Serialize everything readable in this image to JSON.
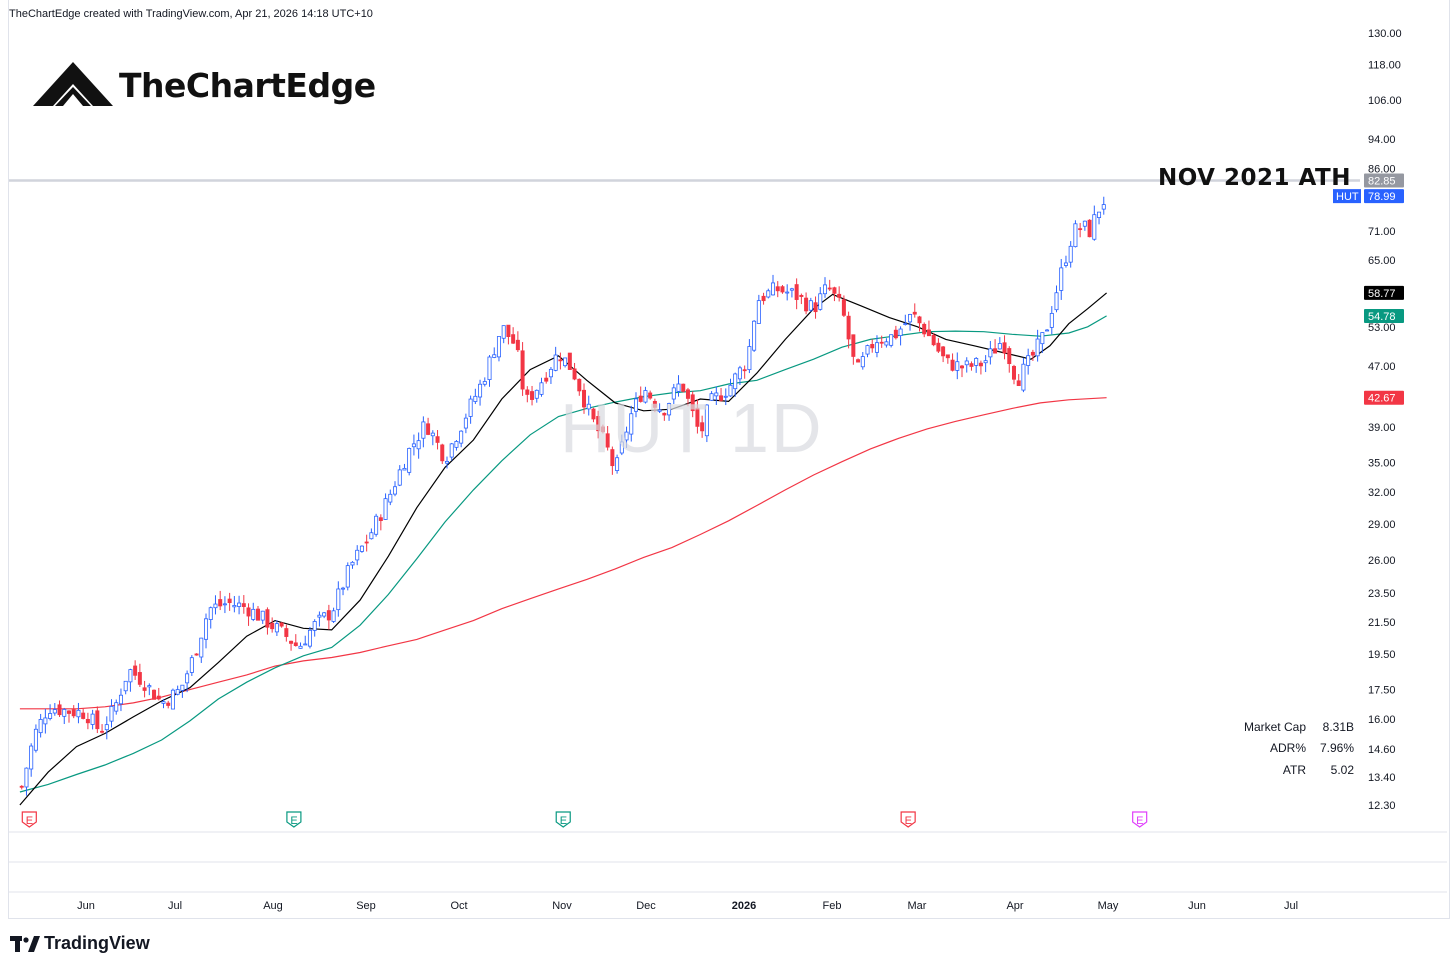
{
  "header": {
    "text": "TheChartEdge created with TradingView.com, Apr 21, 2026 14:18 UTC+10"
  },
  "logo": {
    "text": "TheChartEdge",
    "icon": "chevron-mountain-icon"
  },
  "watermark": "HUT 1D",
  "annotation": {
    "ath_label": "NOV 2021 ATH",
    "ath_level": 82.85
  },
  "stats": [
    {
      "label": "Market Cap",
      "value": "8.31B"
    },
    {
      "label": "ADR%",
      "value": "7.96%"
    },
    {
      "label": "ATR",
      "value": "5.02"
    }
  ],
  "footer": {
    "brand": "TradingView",
    "icon": "tradingview-logo-icon"
  },
  "colors": {
    "up": "#2962ff",
    "down": "#f23645",
    "ma_short": "#000000",
    "ma_mid": "#089981",
    "ma_long": "#f23645",
    "ath_line": "#d1d4dc"
  },
  "chart_data": {
    "type": "candlestick",
    "symbol": "HUT",
    "interval": "1D",
    "y_scale": "log",
    "y_ticks": [
      130.0,
      118.0,
      106.0,
      94.0,
      86.0,
      71.0,
      65.0,
      53.0,
      47.0,
      39.0,
      35.0,
      32.0,
      29.0,
      26.0,
      23.5,
      21.5,
      19.5,
      17.5,
      16.0,
      14.6,
      13.4,
      12.3
    ],
    "x_months": [
      "Jun",
      "Jul",
      "Aug",
      "Sep",
      "Oct",
      "Nov",
      "Dec",
      "2026",
      "Feb",
      "Mar",
      "Apr",
      "May",
      "Jun",
      "Jul"
    ],
    "price_labels": [
      {
        "text": "82.85",
        "value": 82.85,
        "color": "#9598a1",
        "kind": "ath"
      },
      {
        "text": "78.99",
        "value": 78.99,
        "color": "#2962ff",
        "kind": "last",
        "symbol": "HUT"
      },
      {
        "text": "58.77",
        "value": 58.77,
        "color": "#000000",
        "kind": "ma_short"
      },
      {
        "text": "54.78",
        "value": 54.78,
        "color": "#089981",
        "kind": "ma_mid"
      },
      {
        "text": "42.67",
        "value": 42.67,
        "color": "#f23645",
        "kind": "ma_long"
      }
    ],
    "earnings_markers": [
      {
        "month_pos": -0.6,
        "letter": "E",
        "color": "#f23645"
      },
      {
        "month_pos": 2.2,
        "letter": "E",
        "color": "#089981"
      },
      {
        "month_pos": 5.05,
        "letter": "E",
        "color": "#089981"
      },
      {
        "month_pos": 8.7,
        "letter": "E",
        "color": "#f23645"
      },
      {
        "month_pos": 11.15,
        "letter": "E",
        "color": "#e040fb"
      }
    ],
    "close_path": [
      [
        -0.68,
        13.0
      ],
      [
        -0.55,
        15.2
      ],
      [
        -0.4,
        16.6
      ],
      [
        -0.2,
        16.4
      ],
      [
        0.0,
        16.3
      ],
      [
        0.15,
        15.4
      ],
      [
        0.3,
        16.5
      ],
      [
        0.45,
        18.6
      ],
      [
        0.6,
        18.0
      ],
      [
        0.8,
        16.8
      ],
      [
        1.0,
        17.5
      ],
      [
        1.15,
        19.5
      ],
      [
        1.3,
        22.4
      ],
      [
        1.5,
        22.8
      ],
      [
        1.7,
        22.5
      ],
      [
        1.9,
        21.6
      ],
      [
        2.1,
        20.7
      ],
      [
        2.25,
        19.9
      ],
      [
        2.4,
        21.2
      ],
      [
        2.6,
        22.2
      ],
      [
        2.8,
        25.5
      ],
      [
        3.0,
        28.0
      ],
      [
        3.2,
        31.4
      ],
      [
        3.4,
        36.0
      ],
      [
        3.6,
        39.5
      ],
      [
        3.8,
        35.5
      ],
      [
        4.0,
        40.0
      ],
      [
        4.2,
        45.0
      ],
      [
        4.4,
        53.0
      ],
      [
        4.55,
        50.0
      ],
      [
        4.65,
        42.0
      ],
      [
        4.8,
        44.5
      ],
      [
        5.0,
        49.0
      ],
      [
        5.15,
        46.5
      ],
      [
        5.35,
        40.0
      ],
      [
        5.5,
        37.0
      ],
      [
        5.6,
        34.0
      ],
      [
        5.75,
        40.0
      ],
      [
        5.9,
        44.0
      ],
      [
        6.1,
        41.0
      ],
      [
        6.3,
        44.8
      ],
      [
        6.5,
        38.0
      ],
      [
        6.6,
        42.0
      ],
      [
        6.8,
        44.0
      ],
      [
        7.0,
        48.0
      ],
      [
        7.1,
        57.5
      ],
      [
        7.3,
        59.5
      ],
      [
        7.5,
        58.5
      ],
      [
        7.7,
        56.0
      ],
      [
        7.85,
        60.0
      ],
      [
        8.0,
        56.0
      ],
      [
        8.15,
        46.0
      ],
      [
        8.35,
        51.0
      ],
      [
        8.55,
        51.5
      ],
      [
        8.75,
        55.0
      ],
      [
        8.9,
        52.0
      ],
      [
        9.1,
        47.5
      ],
      [
        9.3,
        46.8
      ],
      [
        9.5,
        47.5
      ],
      [
        9.7,
        51.0
      ],
      [
        9.85,
        45.0
      ],
      [
        10.0,
        48.0
      ],
      [
        10.15,
        52.0
      ],
      [
        10.25,
        58.0
      ],
      [
        10.35,
        64.5
      ],
      [
        10.45,
        71.0
      ],
      [
        10.55,
        72.0
      ],
      [
        10.62,
        71.0
      ],
      [
        10.72,
        76.0
      ],
      [
        10.8,
        78.99
      ]
    ],
    "ma_short": [
      [
        -0.7,
        12.3
      ],
      [
        -0.4,
        13.6
      ],
      [
        -0.1,
        14.7
      ],
      [
        0.2,
        15.3
      ],
      [
        0.5,
        16.1
      ],
      [
        0.8,
        16.9
      ],
      [
        1.1,
        17.6
      ],
      [
        1.4,
        19.0
      ],
      [
        1.7,
        20.6
      ],
      [
        2.0,
        21.6
      ],
      [
        2.3,
        21.1
      ],
      [
        2.6,
        21.0
      ],
      [
        2.9,
        23.0
      ],
      [
        3.2,
        26.3
      ],
      [
        3.5,
        30.5
      ],
      [
        3.8,
        34.5
      ],
      [
        4.1,
        37.5
      ],
      [
        4.4,
        42.5
      ],
      [
        4.7,
        46.5
      ],
      [
        5.0,
        48.5
      ],
      [
        5.3,
        45.0
      ],
      [
        5.6,
        42.0
      ],
      [
        5.9,
        41.0
      ],
      [
        6.2,
        41.2
      ],
      [
        6.5,
        42.5
      ],
      [
        6.8,
        42.2
      ],
      [
        7.1,
        46.0
      ],
      [
        7.4,
        51.0
      ],
      [
        7.7,
        56.0
      ],
      [
        7.9,
        58.5
      ],
      [
        8.2,
        56.5
      ],
      [
        8.5,
        54.5
      ],
      [
        8.8,
        53.0
      ],
      [
        9.1,
        51.0
      ],
      [
        9.4,
        50.0
      ],
      [
        9.7,
        49.0
      ],
      [
        10.0,
        48.0
      ],
      [
        10.2,
        50.0
      ],
      [
        10.4,
        53.5
      ],
      [
        10.6,
        56.0
      ],
      [
        10.8,
        58.77
      ]
    ],
    "ma_mid": [
      [
        -0.7,
        12.8
      ],
      [
        -0.4,
        13.1
      ],
      [
        -0.1,
        13.5
      ],
      [
        0.2,
        13.9
      ],
      [
        0.5,
        14.4
      ],
      [
        0.8,
        15.0
      ],
      [
        1.1,
        15.9
      ],
      [
        1.4,
        17.0
      ],
      [
        1.7,
        17.9
      ],
      [
        2.0,
        18.7
      ],
      [
        2.3,
        19.4
      ],
      [
        2.6,
        19.9
      ],
      [
        2.9,
        21.3
      ],
      [
        3.2,
        23.4
      ],
      [
        3.5,
        26.1
      ],
      [
        3.8,
        29.2
      ],
      [
        4.1,
        32.2
      ],
      [
        4.4,
        35.2
      ],
      [
        4.7,
        38.1
      ],
      [
        5.0,
        40.3
      ],
      [
        5.3,
        41.3
      ],
      [
        5.6,
        42.1
      ],
      [
        5.9,
        42.8
      ],
      [
        6.2,
        43.3
      ],
      [
        6.5,
        43.6
      ],
      [
        6.8,
        44.5
      ],
      [
        7.1,
        45.0
      ],
      [
        7.4,
        46.5
      ],
      [
        7.7,
        48.0
      ],
      [
        8.0,
        49.8
      ],
      [
        8.3,
        51.0
      ],
      [
        8.6,
        51.6
      ],
      [
        8.9,
        52.2
      ],
      [
        9.2,
        52.3
      ],
      [
        9.5,
        52.2
      ],
      [
        9.8,
        51.8
      ],
      [
        10.1,
        51.5
      ],
      [
        10.4,
        52.0
      ],
      [
        10.6,
        53.0
      ],
      [
        10.8,
        54.78
      ]
    ],
    "ma_long": [
      [
        -0.7,
        16.5
      ],
      [
        -0.4,
        16.5
      ],
      [
        -0.1,
        16.5
      ],
      [
        0.2,
        16.6
      ],
      [
        0.5,
        16.8
      ],
      [
        0.8,
        17.1
      ],
      [
        1.1,
        17.5
      ],
      [
        1.4,
        17.9
      ],
      [
        1.7,
        18.3
      ],
      [
        2.0,
        18.8
      ],
      [
        2.3,
        19.1
      ],
      [
        2.6,
        19.3
      ],
      [
        2.9,
        19.6
      ],
      [
        3.2,
        20.0
      ],
      [
        3.5,
        20.4
      ],
      [
        3.8,
        21.0
      ],
      [
        4.1,
        21.6
      ],
      [
        4.4,
        22.4
      ],
      [
        4.7,
        23.1
      ],
      [
        5.0,
        23.8
      ],
      [
        5.3,
        24.5
      ],
      [
        5.6,
        25.3
      ],
      [
        5.9,
        26.2
      ],
      [
        6.2,
        27.0
      ],
      [
        6.5,
        28.1
      ],
      [
        6.8,
        29.3
      ],
      [
        7.1,
        30.7
      ],
      [
        7.4,
        32.2
      ],
      [
        7.7,
        33.7
      ],
      [
        8.0,
        35.1
      ],
      [
        8.3,
        36.5
      ],
      [
        8.6,
        37.7
      ],
      [
        8.9,
        38.8
      ],
      [
        9.2,
        39.7
      ],
      [
        9.5,
        40.5
      ],
      [
        9.8,
        41.3
      ],
      [
        10.1,
        42.0
      ],
      [
        10.4,
        42.4
      ],
      [
        10.8,
        42.67
      ]
    ]
  }
}
